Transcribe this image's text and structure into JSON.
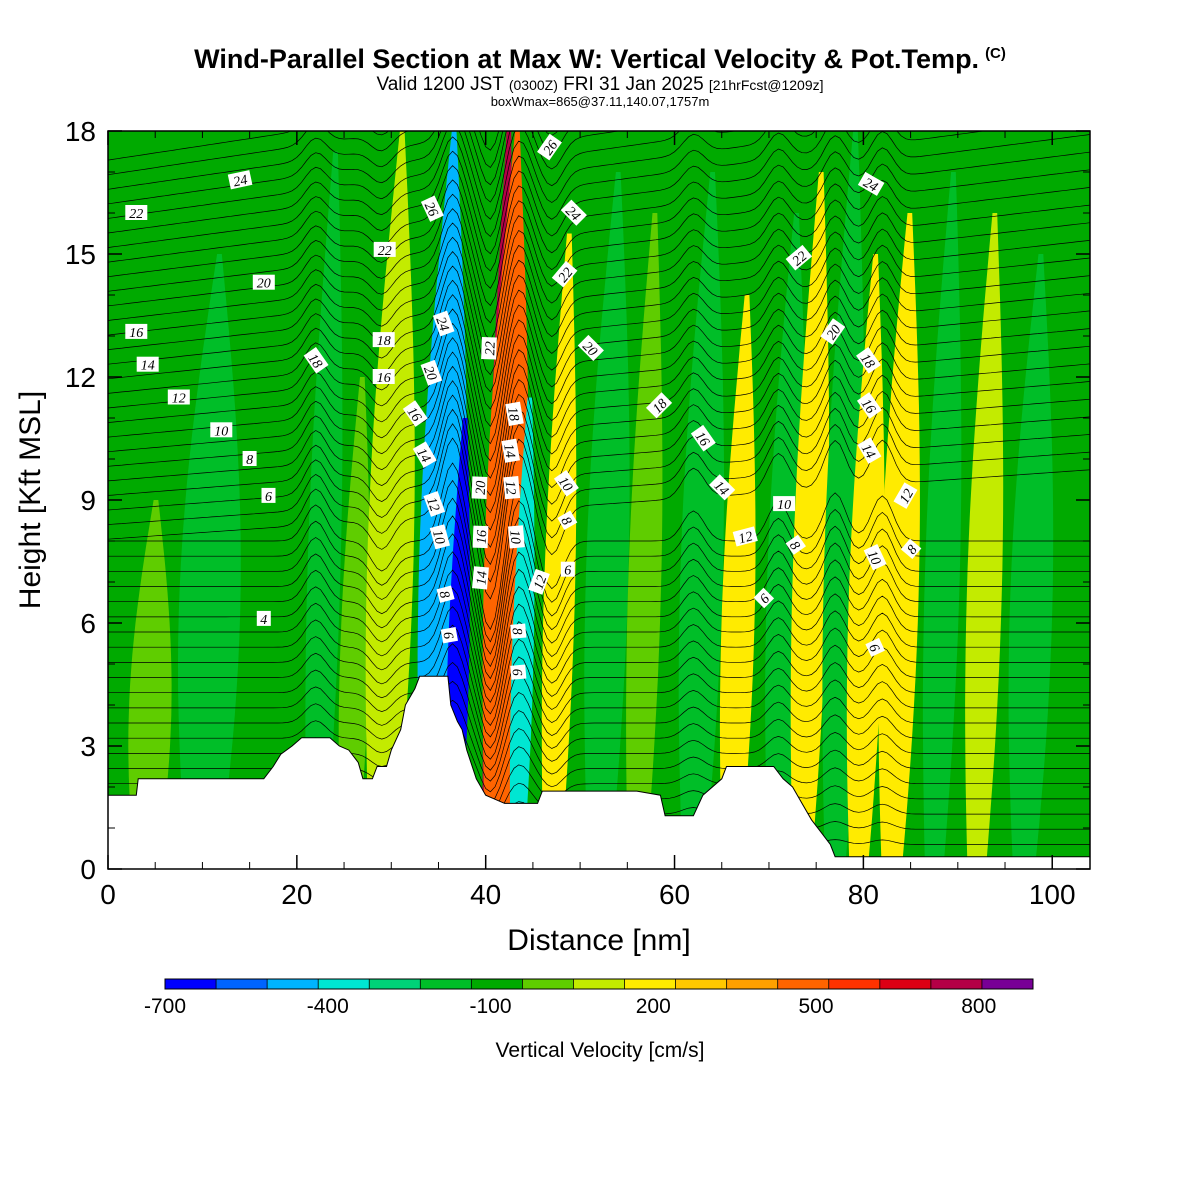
{
  "header": {
    "title": "Wind-Parallel Section at Max W: Vertical Velocity & Pot.Temp.",
    "copyright": "(C)",
    "valid_prefix": "Valid 1200 JST",
    "valid_utc": "(0300Z)",
    "valid_date": "FRI 31 Jan 2025",
    "forecast_info": "[21hrFcst@1209z]",
    "box_info": "boxWmax=865@37.11,140.07,1757m"
  },
  "chart_data": {
    "type": "heatmap",
    "xlabel": "Distance [nm]",
    "ylabel": "Height [Kft MSL]",
    "xlim": [
      0,
      104
    ],
    "ylim": [
      0,
      18
    ],
    "x_ticks": [
      0,
      20,
      40,
      60,
      80,
      100
    ],
    "y_ticks": [
      0,
      3,
      6,
      9,
      12,
      15,
      18
    ],
    "colorbar": {
      "label": "Vertical Velocity [cm/s]",
      "min": -700,
      "max": 900,
      "step": 100,
      "tick_values": [
        -700,
        -400,
        -100,
        200,
        500,
        800
      ],
      "tick_labels": [
        "-700",
        "-400",
        "-100",
        "200",
        "500",
        "800"
      ],
      "colors": [
        "#0000ff",
        "#0064ff",
        "#00b4ff",
        "#00e6d2",
        "#00d278",
        "#00be28",
        "#00aa00",
        "#5fcd00",
        "#c3eb00",
        "#ffeb00",
        "#ffc800",
        "#ffa000",
        "#ff6400",
        "#ff3200",
        "#dc0014",
        "#b40046",
        "#780096"
      ]
    },
    "background_value_cm_s": -50,
    "velocity_bands": [
      {
        "x": 4,
        "half_width": 2,
        "value": 30,
        "y_top": 9
      },
      {
        "x": 10,
        "half_width": 3,
        "value": -120,
        "y_top": 15
      },
      {
        "x": 22,
        "half_width": 1.5,
        "value": -160,
        "y_top": 17.5
      },
      {
        "x": 25.5,
        "half_width": 1.3,
        "value": 60,
        "y_top": 12
      },
      {
        "x": 29,
        "half_width": 2.2,
        "value": 190,
        "y_top": 18
      },
      {
        "x": 34.5,
        "half_width": 2.2,
        "value": -470,
        "y_top": 18
      },
      {
        "x": 36.5,
        "half_width": 0.9,
        "value": -680,
        "y_top": 11
      },
      {
        "x": 40.3,
        "half_width": 0.9,
        "value": 880,
        "y_top": 18
      },
      {
        "x": 41.2,
        "half_width": 2,
        "value": 540,
        "y_top": 18
      },
      {
        "x": 43.3,
        "half_width": 0.9,
        "value": -330,
        "y_top": 11.5
      },
      {
        "x": 47,
        "half_width": 1.4,
        "value": 280,
        "y_top": 15.5
      },
      {
        "x": 52,
        "half_width": 2,
        "value": -140,
        "y_top": 17
      },
      {
        "x": 56,
        "half_width": 1.5,
        "value": 80,
        "y_top": 16
      },
      {
        "x": 62,
        "half_width": 2,
        "value": -150,
        "y_top": 17
      },
      {
        "x": 66,
        "half_width": 1.5,
        "value": 220,
        "y_top": 14
      },
      {
        "x": 71,
        "half_width": 1.8,
        "value": -140,
        "y_top": 16
      },
      {
        "x": 73.5,
        "half_width": 1.6,
        "value": 270,
        "y_top": 17
      },
      {
        "x": 77,
        "half_width": 1.8,
        "value": -170,
        "y_top": 18
      },
      {
        "x": 79.5,
        "half_width": 1.6,
        "value": 290,
        "y_top": 15
      },
      {
        "x": 83,
        "half_width": 1.8,
        "value": 270,
        "y_top": 16
      },
      {
        "x": 87.5,
        "half_width": 1.6,
        "value": -160,
        "y_top": 17
      },
      {
        "x": 92,
        "half_width": 1.6,
        "value": 150,
        "y_top": 16
      },
      {
        "x": 97,
        "half_width": 2,
        "value": -120,
        "y_top": 15
      }
    ],
    "terrain": [
      [
        0,
        1.8
      ],
      [
        3,
        1.8
      ],
      [
        3.2,
        2.2
      ],
      [
        16.5,
        2.2
      ],
      [
        17.5,
        2.5
      ],
      [
        18.3,
        2.8
      ],
      [
        19.5,
        3.0
      ],
      [
        20.5,
        3.2
      ],
      [
        23.5,
        3.2
      ],
      [
        24.5,
        3.0
      ],
      [
        25.5,
        2.9
      ],
      [
        26.5,
        2.6
      ],
      [
        27,
        2.2
      ],
      [
        28,
        2.2
      ],
      [
        28.5,
        2.5
      ],
      [
        29.5,
        2.5
      ],
      [
        30,
        2.9
      ],
      [
        31,
        3.4
      ],
      [
        31.5,
        4.0
      ],
      [
        32.5,
        4.4
      ],
      [
        33,
        4.7
      ],
      [
        36,
        4.7
      ],
      [
        36.3,
        4.0
      ],
      [
        37,
        3.6
      ],
      [
        37.5,
        3.4
      ],
      [
        38,
        2.9
      ],
      [
        39,
        2.2
      ],
      [
        40,
        1.8
      ],
      [
        42,
        1.6
      ],
      [
        45.5,
        1.6
      ],
      [
        46,
        1.9
      ],
      [
        52,
        1.9
      ],
      [
        56,
        1.9
      ],
      [
        58.5,
        1.8
      ],
      [
        59,
        1.3
      ],
      [
        62,
        1.3
      ],
      [
        63,
        1.8
      ],
      [
        65,
        2.2
      ],
      [
        65.5,
        2.5
      ],
      [
        70.5,
        2.5
      ],
      [
        71.5,
        2.2
      ],
      [
        72.5,
        2.0
      ],
      [
        73.5,
        1.6
      ],
      [
        74.5,
        1.2
      ],
      [
        75.5,
        0.9
      ],
      [
        76.5,
        0.6
      ],
      [
        77,
        0.3
      ],
      [
        104,
        0.3
      ]
    ],
    "theta_labels": [
      {
        "x": 14,
        "y": 16.8,
        "text": "24",
        "angle": -12
      },
      {
        "x": 3,
        "y": 16.0,
        "text": "22",
        "angle": 0
      },
      {
        "x": 16.5,
        "y": 14.3,
        "text": "20",
        "angle": 0
      },
      {
        "x": 3,
        "y": 13.1,
        "text": "16",
        "angle": 0
      },
      {
        "x": 4.2,
        "y": 12.3,
        "text": "14",
        "angle": 0
      },
      {
        "x": 7.5,
        "y": 11.5,
        "text": "12",
        "angle": 0
      },
      {
        "x": 12,
        "y": 10.7,
        "text": "10",
        "angle": 0
      },
      {
        "x": 15,
        "y": 10.0,
        "text": "8",
        "angle": 0
      },
      {
        "x": 17,
        "y": 9.1,
        "text": "6",
        "angle": 0
      },
      {
        "x": 16.5,
        "y": 6.1,
        "text": "4",
        "angle": 0
      },
      {
        "x": 22,
        "y": 12.4,
        "text": "18",
        "angle": 55
      },
      {
        "x": 29.3,
        "y": 15.1,
        "text": "22",
        "angle": 0
      },
      {
        "x": 29.2,
        "y": 12.9,
        "text": "18",
        "angle": 0
      },
      {
        "x": 29.2,
        "y": 12.0,
        "text": "16",
        "angle": 0
      },
      {
        "x": 34.3,
        "y": 16.1,
        "text": "26",
        "angle": 65
      },
      {
        "x": 35.5,
        "y": 13.3,
        "text": "24",
        "angle": 70
      },
      {
        "x": 34.2,
        "y": 12.1,
        "text": "20",
        "angle": 70
      },
      {
        "x": 32.5,
        "y": 11.1,
        "text": "16",
        "angle": 55
      },
      {
        "x": 33.5,
        "y": 10.1,
        "text": "14",
        "angle": 60
      },
      {
        "x": 34.5,
        "y": 8.9,
        "text": "12",
        "angle": 70
      },
      {
        "x": 35.1,
        "y": 8.1,
        "text": "10",
        "angle": 75
      },
      {
        "x": 35.7,
        "y": 6.7,
        "text": "8",
        "angle": 75
      },
      {
        "x": 36.1,
        "y": 5.7,
        "text": "6",
        "angle": 80
      },
      {
        "x": 40.4,
        "y": 12.7,
        "text": "22",
        "angle": -88
      },
      {
        "x": 39.4,
        "y": 9.3,
        "text": "20",
        "angle": -88
      },
      {
        "x": 39.5,
        "y": 8.1,
        "text": "16",
        "angle": -88
      },
      {
        "x": 39.5,
        "y": 7.1,
        "text": "14",
        "angle": -85
      },
      {
        "x": 43,
        "y": 11.1,
        "text": "18",
        "angle": 80
      },
      {
        "x": 42.6,
        "y": 10.2,
        "text": "14",
        "angle": 80
      },
      {
        "x": 42.7,
        "y": 9.3,
        "text": "12",
        "angle": 85
      },
      {
        "x": 43.2,
        "y": 8.1,
        "text": "10",
        "angle": 85
      },
      {
        "x": 43.4,
        "y": 5.8,
        "text": "8",
        "angle": 85
      },
      {
        "x": 43.4,
        "y": 4.8,
        "text": "6",
        "angle": 85
      },
      {
        "x": 46.8,
        "y": 17.6,
        "text": "26",
        "angle": -55
      },
      {
        "x": 49.3,
        "y": 16.0,
        "text": "24",
        "angle": 45
      },
      {
        "x": 48.4,
        "y": 14.5,
        "text": "22",
        "angle": -50
      },
      {
        "x": 51.1,
        "y": 12.7,
        "text": "20",
        "angle": 45
      },
      {
        "x": 48.5,
        "y": 9.4,
        "text": "10",
        "angle": 55
      },
      {
        "x": 48.6,
        "y": 8.5,
        "text": "8",
        "angle": 60
      },
      {
        "x": 45.7,
        "y": 7.0,
        "text": "12",
        "angle": -70
      },
      {
        "x": 48.7,
        "y": 7.3,
        "text": "6",
        "angle": 0
      },
      {
        "x": 58.4,
        "y": 11.3,
        "text": "18",
        "angle": -45
      },
      {
        "x": 63,
        "y": 10.5,
        "text": "16",
        "angle": 55
      },
      {
        "x": 65,
        "y": 9.3,
        "text": "14",
        "angle": 45
      },
      {
        "x": 67.5,
        "y": 8.1,
        "text": "12",
        "angle": -15
      },
      {
        "x": 71.6,
        "y": 8.9,
        "text": "10",
        "angle": 0
      },
      {
        "x": 72.8,
        "y": 7.9,
        "text": "8",
        "angle": 55
      },
      {
        "x": 69.5,
        "y": 6.6,
        "text": "6",
        "angle": -45
      },
      {
        "x": 73.2,
        "y": 14.9,
        "text": "22",
        "angle": -40
      },
      {
        "x": 76.8,
        "y": 13.1,
        "text": "20",
        "angle": -55
      },
      {
        "x": 80.8,
        "y": 16.7,
        "text": "24",
        "angle": 30
      },
      {
        "x": 80.5,
        "y": 12.4,
        "text": "18",
        "angle": 55
      },
      {
        "x": 80.6,
        "y": 11.3,
        "text": "16",
        "angle": 55
      },
      {
        "x": 80.6,
        "y": 10.2,
        "text": "14",
        "angle": 60
      },
      {
        "x": 81.2,
        "y": 7.6,
        "text": "10",
        "angle": 65
      },
      {
        "x": 81.2,
        "y": 5.4,
        "text": "6",
        "angle": 65
      },
      {
        "x": 84.5,
        "y": 9.1,
        "text": "12",
        "angle": -60
      },
      {
        "x": 85.1,
        "y": 7.8,
        "text": "8",
        "angle": -50
      }
    ]
  }
}
